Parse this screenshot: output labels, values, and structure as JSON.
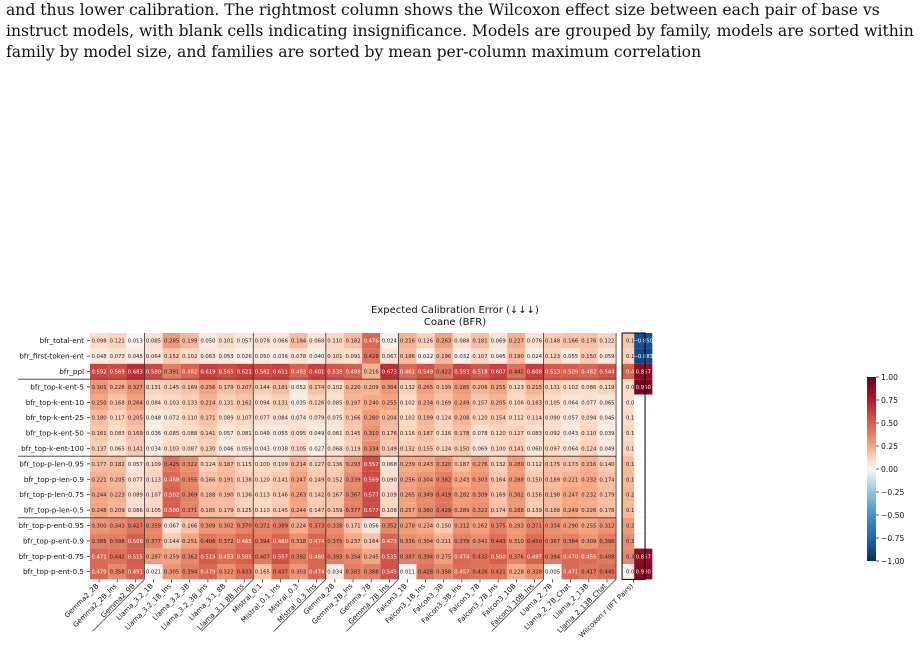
{
  "caption": [
    "and thus lower calibration. The rightmost column shows the Wilcoxon effect size between each pair of base vs",
    "instruct models, with blank cells indicating insignificance. Models are grouped by family, models are sorted within",
    "family by model size, and families are sorted by mean per-column maximum correlation"
  ],
  "chart_data": {
    "type": "heatmap",
    "title": "Expected Calibration Error (↓↓↓)",
    "subtitle": "Coane (BFR)",
    "colorscale": {
      "name": "RdBu_r",
      "min": -1.0,
      "max": 1.0,
      "low_color": "#053061",
      "mid_color": "#f7f7f7",
      "high_color": "#67001f"
    },
    "colorbar_ticks": [
      "1.00",
      "0.75",
      "0.50",
      "0.25",
      "0.00",
      "−0.25",
      "−0.50",
      "−0.75",
      "−1.00"
    ],
    "colorbar_tick_values": [
      1.0,
      0.75,
      0.5,
      0.25,
      0.0,
      -0.25,
      -0.5,
      -0.75,
      -1.0
    ],
    "row_labels": [
      "bfr_total-ent",
      "bfr_first-token-ent",
      "bfr_ppl",
      "bfr_top-k-ent-5",
      "bfr_top-k-ent-10",
      "bfr_top-k-ent-25",
      "bfr_top-k-ent-50",
      "bfr_top-k-ent-100",
      "bfr_top-p-len-0.95",
      "bfr_top-p-len-0.9",
      "bfr_top-p-len-0.75",
      "bfr_top-p-len-0.5",
      "bfr_top-p-ent-0.95",
      "bfr_top-p-ent-0.9",
      "bfr_top-p-ent-0.75",
      "bfr_top-p-ent-0.5"
    ],
    "row_group_breaks_after": [
      2,
      7,
      11
    ],
    "column_labels": [
      "Gemma2_2B",
      "Gemma2_2B_Ins",
      "Gemma2_9B",
      "Llama_3.2_1B",
      "Llama_3.2_1B_Ins",
      "Llama_3.2_3B",
      "Llama_3.2_3B_Ins",
      "Llama_3.1_8B",
      "Llama_3.1_8B_Ins",
      "Mistral_0.1",
      "Mistral_0.1_Ins",
      "Mistral_0.3",
      "Mistral_0.3_Ins",
      "Gemma_2B",
      "Gemma_2B_Ins",
      "Gemma_7B",
      "Gemma_7B_Ins",
      "Falcon3_1B",
      "Falcon3_1B_Ins",
      "Falcon3_3B",
      "Falcon3_3B_Ins",
      "Falcon3_7B",
      "Falcon3_7B_Ins",
      "Falcon3_10B",
      "Falcon3_10B_Ins",
      "Llama_2_7B",
      "Llama_2_7B_Chat",
      "Llama_2_13B",
      "Llama_2_13B_Chat",
      "Wilcoxon r (IFT Pairs)"
    ],
    "column_group_breaks_after": [
      2,
      8,
      12,
      16,
      24,
      28
    ],
    "values": [
      [
        0.098,
        0.121,
        0.013,
        0.085,
        0.285,
        0.199,
        0.05,
        0.101,
        0.057,
        0.078,
        0.066,
        0.184,
        0.068,
        0.11,
        0.182,
        0.476,
        0.024,
        0.216,
        0.126,
        0.263,
        0.088,
        0.181,
        0.069,
        0.227,
        0.076,
        0.148,
        0.166,
        0.176,
        0.122,
        0.158,
        -0.85
      ],
      [
        0.048,
        0.073,
        0.045,
        0.064,
        0.152,
        0.102,
        0.063,
        0.053,
        0.026,
        0.05,
        0.036,
        0.078,
        0.04,
        0.101,
        0.091,
        0.428,
        0.067,
        0.186,
        0.022,
        0.196,
        0.032,
        0.107,
        0.045,
        0.19,
        0.024,
        0.123,
        0.055,
        0.15,
        0.059,
        0.121,
        -0.883
      ],
      [
        0.592,
        0.569,
        0.683,
        0.58,
        0.391,
        0.482,
        0.619,
        0.565,
        0.621,
        0.582,
        0.611,
        0.493,
        0.601,
        0.538,
        0.499,
        0.216,
        0.673,
        0.461,
        0.549,
        0.422,
        0.593,
        0.518,
        0.607,
        0.442,
        0.608,
        0.513,
        0.509,
        0.482,
        0.544,
        0.489,
        0.867
      ],
      [
        0.301,
        0.228,
        0.327,
        0.131,
        0.145,
        0.169,
        0.256,
        0.179,
        0.207,
        0.144,
        0.181,
        0.052,
        0.174,
        0.102,
        0.22,
        0.209,
        0.304,
        0.132,
        0.265,
        0.199,
        0.285,
        0.206,
        0.255,
        0.123,
        0.215,
        0.131,
        0.102,
        0.086,
        0.119,
        0.093,
        0.95
      ],
      [
        0.25,
        0.168,
        0.264,
        0.084,
        0.103,
        0.133,
        0.214,
        0.131,
        0.162,
        0.094,
        0.131,
        0.035,
        0.126,
        0.085,
        0.197,
        0.24,
        0.255,
        0.102,
        0.234,
        0.169,
        0.249,
        0.157,
        0.205,
        0.106,
        0.163,
        0.105,
        0.064,
        0.077,
        0.065,
        0.086,
        null
      ],
      [
        0.18,
        0.117,
        0.205,
        0.048,
        0.072,
        0.11,
        0.171,
        0.089,
        0.107,
        0.077,
        0.084,
        0.074,
        0.079,
        0.075,
        0.166,
        0.28,
        0.204,
        0.102,
        0.199,
        0.124,
        0.208,
        0.12,
        0.154,
        0.112,
        0.114,
        0.09,
        0.057,
        0.094,
        0.045,
        0.1,
        null
      ],
      [
        0.161,
        0.083,
        0.169,
        0.036,
        0.085,
        0.088,
        0.141,
        0.057,
        0.081,
        0.049,
        0.055,
        0.095,
        0.049,
        0.061,
        0.145,
        0.31,
        0.176,
        0.116,
        0.187,
        0.116,
        0.178,
        0.078,
        0.12,
        0.127,
        0.083,
        0.092,
        0.043,
        0.11,
        0.039,
        0.11,
        null
      ],
      [
        0.137,
        0.065,
        0.141,
        0.034,
        0.103,
        0.087,
        0.13,
        0.046,
        0.059,
        0.043,
        0.038,
        0.105,
        0.027,
        0.068,
        0.119,
        0.334,
        0.149,
        0.132,
        0.155,
        0.124,
        0.15,
        0.069,
        0.1,
        0.141,
        0.06,
        0.097,
        0.064,
        0.124,
        0.049,
        0.119,
        null
      ],
      [
        0.177,
        0.182,
        0.057,
        0.109,
        0.425,
        0.322,
        0.124,
        0.187,
        0.115,
        0.1,
        0.109,
        0.214,
        0.127,
        0.136,
        0.293,
        0.557,
        0.068,
        0.239,
        0.243,
        0.32,
        0.187,
        0.276,
        0.132,
        0.28,
        0.112,
        0.175,
        0.173,
        0.216,
        0.14,
        0.183,
        null
      ],
      [
        0.221,
        0.205,
        0.077,
        0.113,
        0.468,
        0.355,
        0.166,
        0.191,
        0.138,
        0.12,
        0.141,
        0.247,
        0.149,
        0.152,
        0.339,
        0.569,
        0.09,
        0.256,
        0.304,
        0.382,
        0.243,
        0.303,
        0.164,
        0.288,
        0.15,
        0.189,
        0.221,
        0.232,
        0.174,
        0.197,
        null
      ],
      [
        0.244,
        0.223,
        0.089,
        0.107,
        0.502,
        0.369,
        0.188,
        0.19,
        0.136,
        0.113,
        0.146,
        0.263,
        0.142,
        0.167,
        0.367,
        0.577,
        0.109,
        0.265,
        0.349,
        0.419,
        0.282,
        0.309,
        0.169,
        0.302,
        0.156,
        0.198,
        0.247,
        0.232,
        0.179,
        0.209,
        null
      ],
      [
        0.248,
        0.209,
        0.086,
        0.105,
        0.5,
        0.371,
        0.185,
        0.179,
        0.125,
        0.11,
        0.145,
        0.244,
        0.147,
        0.159,
        0.377,
        0.577,
        0.108,
        0.257,
        0.36,
        0.429,
        0.289,
        0.322,
        0.174,
        0.288,
        0.139,
        0.188,
        0.249,
        0.226,
        0.178,
        0.198,
        null
      ],
      [
        0.3,
        0.343,
        0.427,
        0.359,
        0.067,
        0.166,
        0.309,
        0.302,
        0.37,
        0.371,
        0.389,
        0.224,
        0.373,
        0.338,
        0.171,
        0.056,
        0.352,
        0.278,
        0.234,
        0.15,
        0.312,
        0.262,
        0.375,
        0.293,
        0.371,
        0.334,
        0.29,
        0.255,
        0.312,
        0.281,
        null
      ],
      [
        0.385,
        0.398,
        0.508,
        0.377,
        0.144,
        0.251,
        0.406,
        0.372,
        0.465,
        0.394,
        0.48,
        0.318,
        0.474,
        0.375,
        0.237,
        0.164,
        0.473,
        0.336,
        0.304,
        0.211,
        0.379,
        0.341,
        0.443,
        0.31,
        0.45,
        0.367,
        0.384,
        0.309,
        0.396,
        0.346,
        null
      ],
      [
        0.471,
        0.442,
        0.515,
        0.287,
        0.259,
        0.362,
        0.519,
        0.453,
        0.505,
        0.407,
        0.557,
        0.392,
        0.48,
        0.393,
        0.354,
        0.245,
        0.535,
        0.387,
        0.394,
        0.275,
        0.474,
        0.432,
        0.5,
        0.376,
        0.497,
        0.394,
        0.47,
        0.455,
        0.408,
        0.354,
        0.867
      ],
      [
        0.47,
        0.358,
        0.491,
        0.021,
        0.305,
        0.394,
        0.479,
        0.322,
        0.433,
        0.165,
        0.437,
        0.303,
        0.474,
        0.034,
        0.383,
        0.388,
        0.545,
        0.011,
        0.428,
        0.358,
        0.457,
        0.426,
        0.421,
        0.228,
        0.328,
        0.005,
        0.471,
        0.417,
        0.445,
        0.019,
        0.9
      ]
    ]
  }
}
